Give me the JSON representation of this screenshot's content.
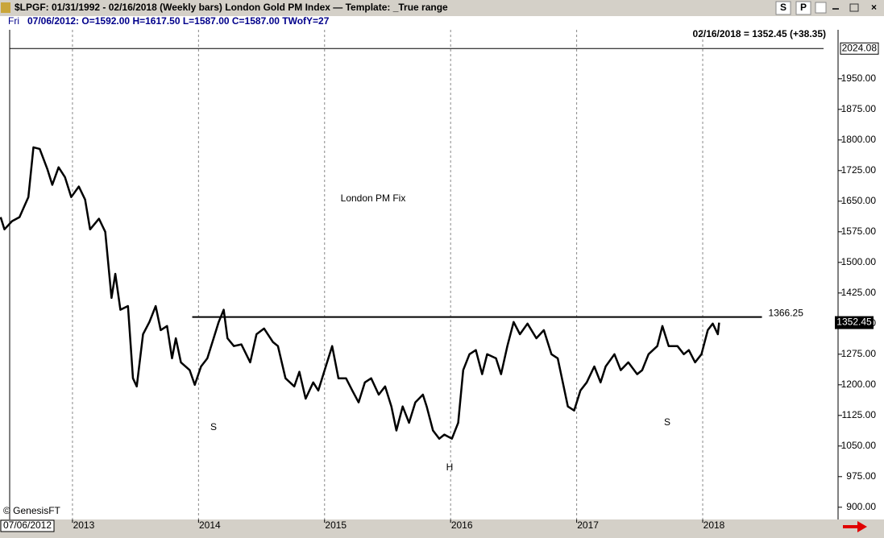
{
  "header": {
    "symbol_line": "$LPGF:  01/31/1992 - 02/16/2018  (Weekly bars)   London Gold PM Index  —  Template: _True range",
    "day_label": "Fri",
    "bar_line": "07/06/2012:  O=1592.00  H=1617.50  L=1587.00  C=1587.00  TWofY=27",
    "buttons": [
      "S",
      "P"
    ]
  },
  "chart_data": {
    "type": "line",
    "title": "London PM Fix",
    "last_value_label": "02/16/2018 = 1352.45 (+38.35)",
    "last_price": 1352.45,
    "top_level": 2024.08,
    "date_label": "07/06/2012",
    "source": "© GenesisFT",
    "annotations": [
      "S",
      "H",
      "S"
    ],
    "neckline": {
      "value": 1366.25,
      "x": [
        2013.95,
        2018.47
      ]
    },
    "xlim": [
      2012.425,
      2019.01
    ],
    "xticks": [
      2013,
      2014,
      2015,
      2016,
      2017,
      2018
    ],
    "ylim": [
      870,
      2070
    ],
    "yticks": [
      {
        "value": 900,
        "label": "900.00"
      },
      {
        "value": 975,
        "label": "975.00"
      },
      {
        "value": 1050,
        "label": "1050.00"
      },
      {
        "value": 1125,
        "label": "1125.00"
      },
      {
        "value": 1200,
        "label": "1200.00"
      },
      {
        "value": 1275,
        "label": "1275.00"
      },
      {
        "value": 1350,
        "label": "1350.00"
      },
      {
        "value": 1425,
        "label": "1425.00"
      },
      {
        "value": 1500,
        "label": "1500.00"
      },
      {
        "value": 1575,
        "label": "1575.00"
      },
      {
        "value": 1650,
        "label": "1650.00"
      },
      {
        "value": 1725,
        "label": "1725.00"
      },
      {
        "value": 1800,
        "label": "1800.00"
      },
      {
        "value": 1875,
        "label": "1875.00"
      },
      {
        "value": 1950,
        "label": "1950.00"
      }
    ],
    "grid": true,
    "x": [
      2012.43,
      2012.46,
      2012.52,
      2012.58,
      2012.65,
      2012.69,
      2012.74,
      2012.8,
      2012.84,
      2012.89,
      2012.94,
      2012.99,
      2013.05,
      2013.1,
      2013.14,
      2013.21,
      2013.26,
      2013.31,
      2013.34,
      2013.38,
      2013.44,
      2013.48,
      2013.51,
      2013.56,
      2013.61,
      2013.66,
      2013.7,
      2013.75,
      2013.79,
      2013.82,
      2013.86,
      2013.93,
      2013.97,
      2014.02,
      2014.07,
      2014.12,
      2014.16,
      2014.2,
      2014.23,
      2014.28,
      2014.34,
      2014.41,
      2014.46,
      2014.52,
      2014.59,
      2014.63,
      2014.69,
      2014.76,
      2014.8,
      2014.85,
      2014.91,
      2014.95,
      2015.01,
      2015.06,
      2015.11,
      2015.17,
      2015.22,
      2015.27,
      2015.32,
      2015.37,
      2015.43,
      2015.48,
      2015.53,
      2015.57,
      2015.62,
      2015.67,
      2015.72,
      2015.78,
      2015.81,
      2015.86,
      2015.91,
      2015.95,
      2016.01,
      2016.06,
      2016.1,
      2016.15,
      2016.2,
      2016.25,
      2016.29,
      2016.36,
      2016.4,
      2016.45,
      2016.5,
      2016.55,
      2016.61,
      2016.68,
      2016.74,
      2016.8,
      2016.85,
      2016.89,
      2016.93,
      2016.98,
      2017.03,
      2017.08,
      2017.14,
      2017.19,
      2017.23,
      2017.3,
      2017.35,
      2017.41,
      2017.48,
      2017.52,
      2017.57,
      2017.64,
      2017.68,
      2017.73,
      2017.8,
      2017.85,
      2017.89,
      2017.94,
      2017.99,
      2018.04,
      2018.08,
      2018.12,
      2018.13
    ],
    "series": [
      {
        "color": "#000000",
        "values": [
          1611,
          1581,
          1601,
          1611,
          1660,
          1782,
          1778,
          1729,
          1690,
          1733,
          1709,
          1660,
          1686,
          1654,
          1581,
          1607,
          1575,
          1413,
          1472,
          1384,
          1393,
          1216,
          1196,
          1324,
          1354,
          1393,
          1334,
          1344,
          1265,
          1314,
          1255,
          1236,
          1200,
          1245,
          1265,
          1314,
          1354,
          1384,
          1314,
          1295,
          1299,
          1255,
          1324,
          1338,
          1305,
          1295,
          1216,
          1196,
          1232,
          1166,
          1206,
          1186,
          1245,
          1295,
          1216,
          1216,
          1186,
          1157,
          1206,
          1216,
          1176,
          1196,
          1147,
          1088,
          1147,
          1107,
          1157,
          1176,
          1147,
          1088,
          1068,
          1078,
          1068,
          1107,
          1236,
          1275,
          1285,
          1226,
          1275,
          1265,
          1226,
          1295,
          1354,
          1324,
          1350,
          1314,
          1334,
          1275,
          1265,
          1206,
          1147,
          1137,
          1186,
          1206,
          1245,
          1206,
          1245,
          1275,
          1236,
          1255,
          1226,
          1236,
          1275,
          1295,
          1344,
          1295,
          1295,
          1275,
          1285,
          1255,
          1275,
          1334,
          1350,
          1324,
          1352.45
        ]
      }
    ]
  }
}
